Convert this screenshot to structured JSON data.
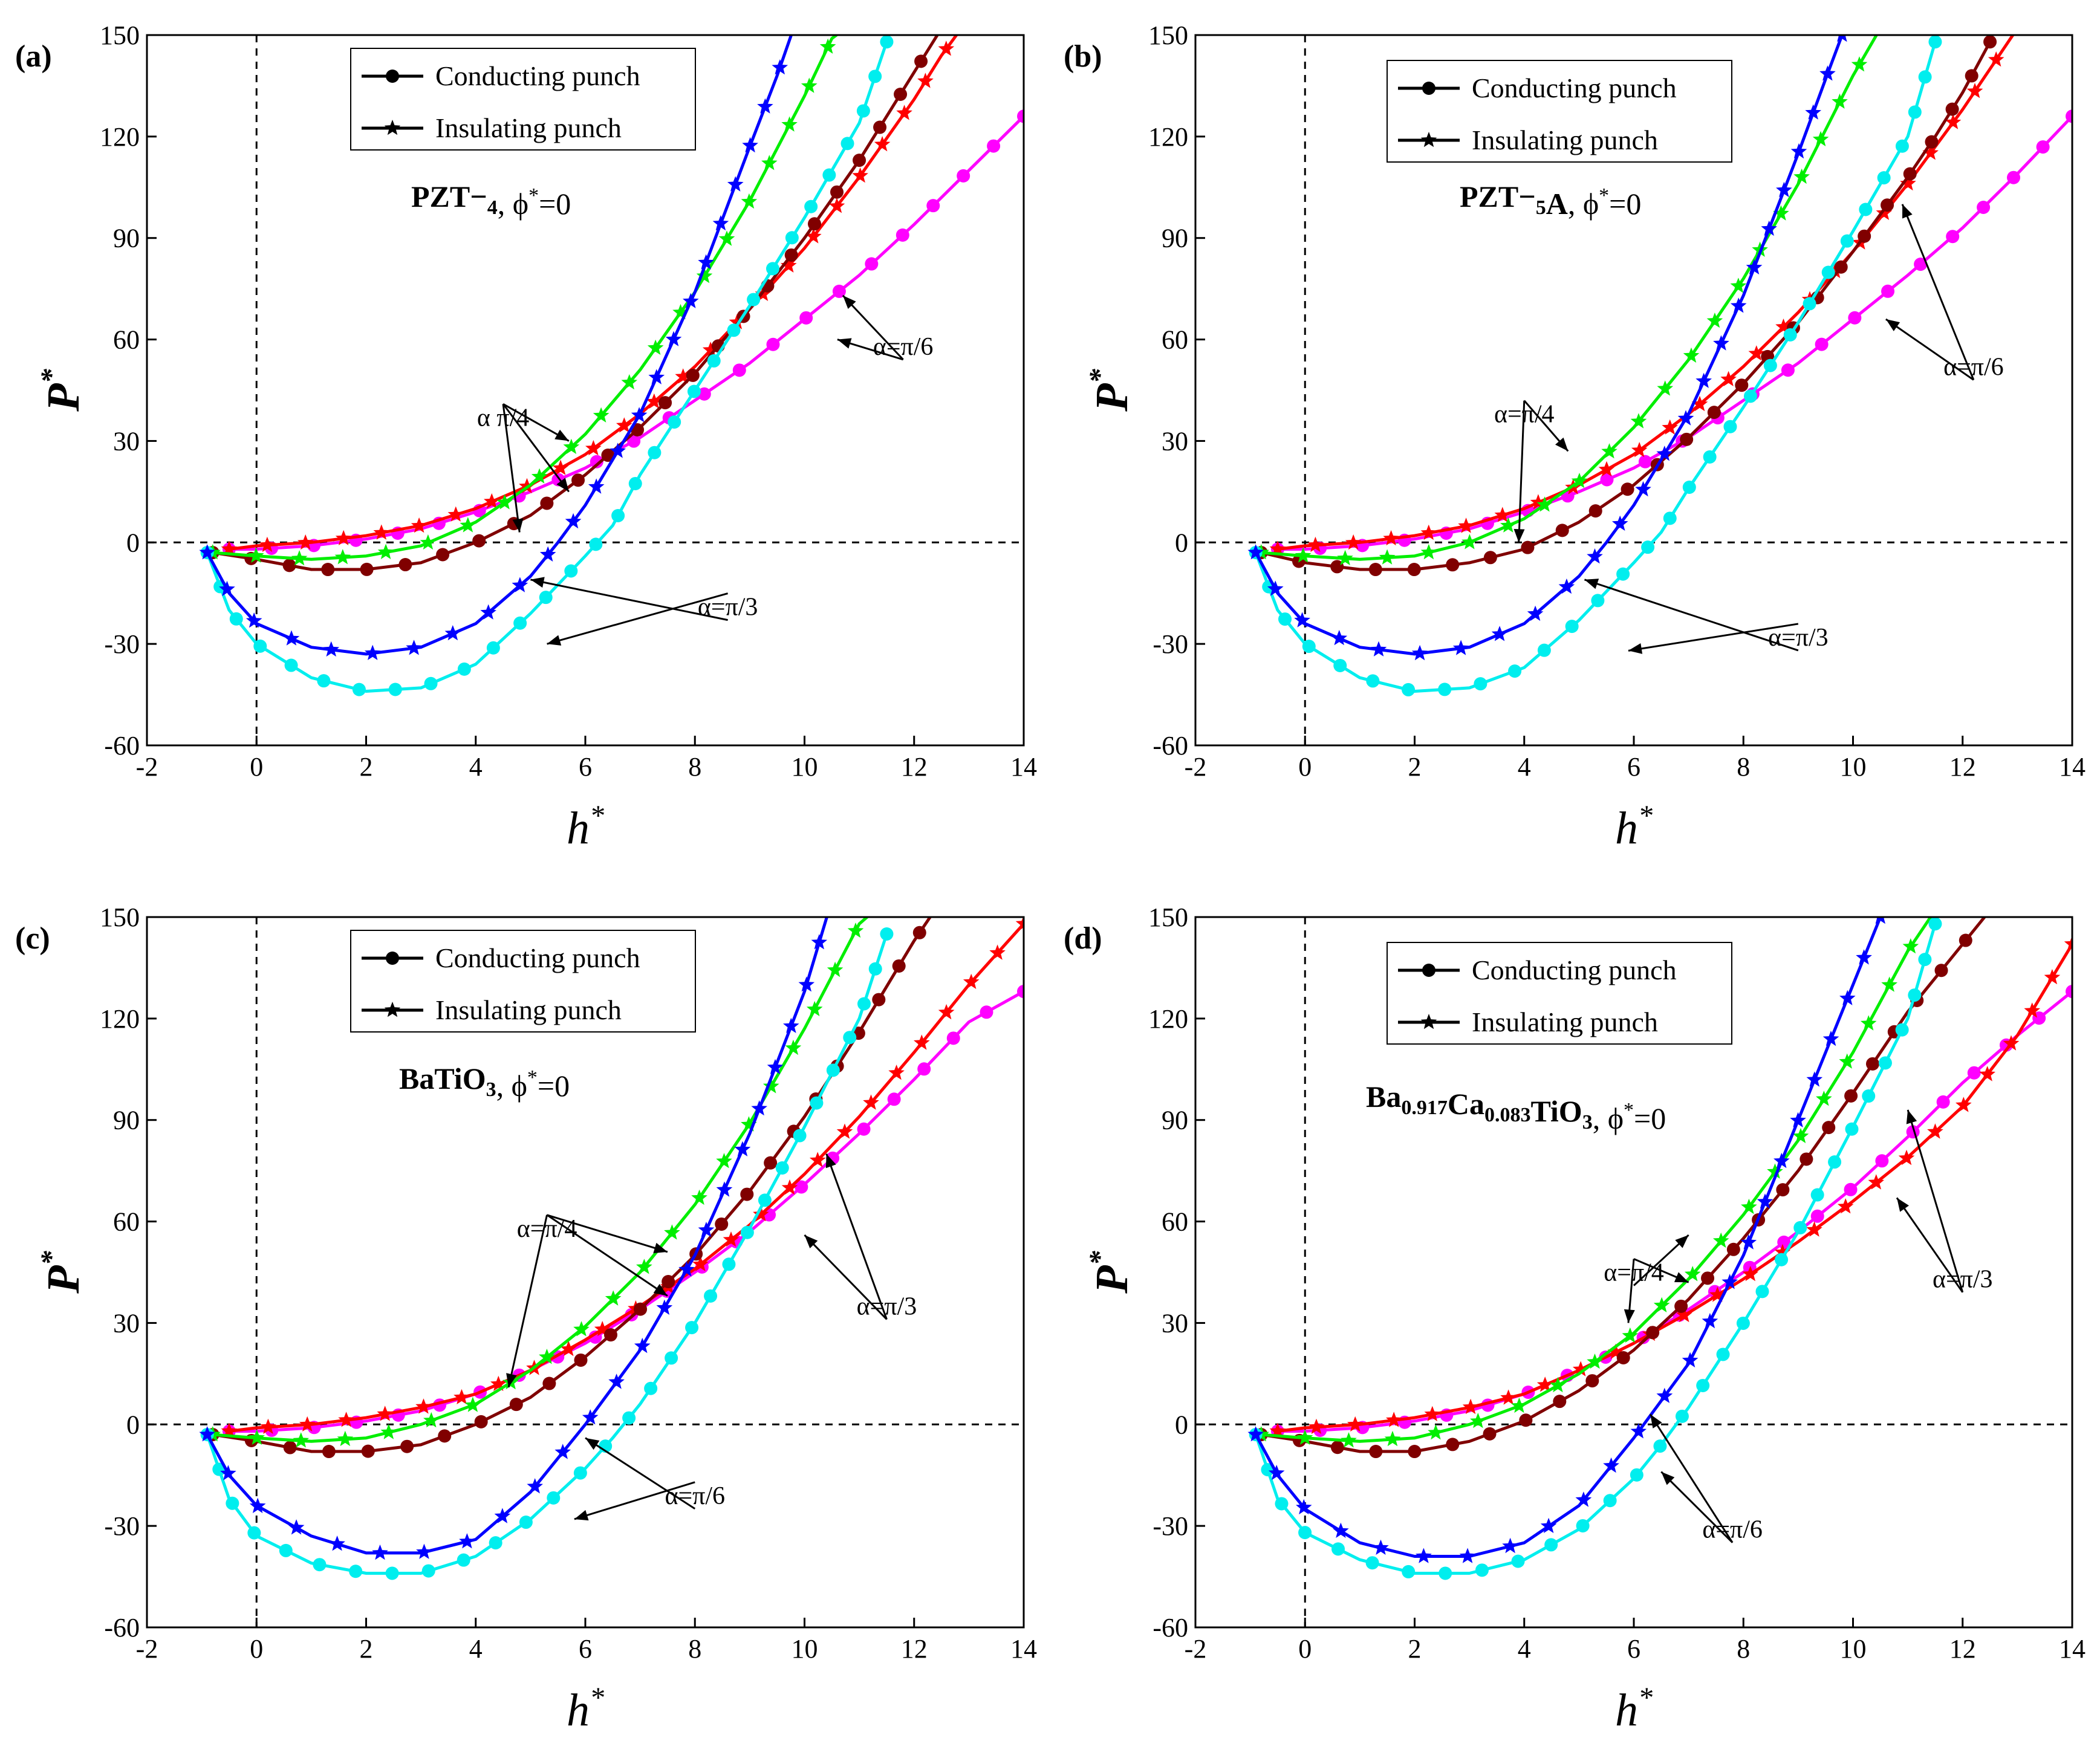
{
  "colors": {
    "pi6_cond": "#ff00ff",
    "pi6_ins": "#ff0000",
    "pi4_cond": "#800000",
    "pi4_ins": "#00ee00",
    "pi3_cond": "#00eeee",
    "pi3_ins": "#0000ff"
  },
  "chart_data": [
    {
      "type": "line",
      "panel_label": "(a)",
      "material_text": "PZT−4",
      "phi_text": "ϕ*=0",
      "xlabel": "h*",
      "ylabel": "P*",
      "xlim": [
        -2,
        14
      ],
      "ylim": [
        -60,
        150
      ],
      "xticks": [
        "-2",
        "0",
        "2",
        "4",
        "6",
        "8",
        "10",
        "12",
        "14"
      ],
      "yticks": [
        "-60",
        "-30",
        "0",
        "30",
        "60",
        "90",
        "120",
        "150"
      ],
      "legend": [
        "Conducting punch",
        "Insulating punch"
      ],
      "annotations": [
        "α  π/4",
        "α=π/3",
        "α=π/6"
      ],
      "series": [
        {
          "name": "Conducting punch, α=π/6",
          "x": [
            -0.5,
            0,
            1,
            2,
            3,
            4,
            5,
            6,
            7,
            8,
            9,
            10,
            11,
            12,
            13,
            14
          ],
          "y": [
            -2,
            -2,
            -1,
            1,
            4,
            9,
            15,
            22,
            31,
            42,
            53,
            66,
            79,
            94,
            110,
            126
          ]
        },
        {
          "name": "Insulating punch, α=π/6",
          "x": [
            -0.5,
            0,
            1,
            2,
            3,
            4,
            5,
            6,
            7,
            8,
            9,
            10,
            11,
            12,
            12.5,
            13
          ],
          "y": [
            -2,
            -1,
            0,
            2,
            5,
            10,
            17,
            26,
            38,
            52,
            69,
            87,
            108,
            131,
            144,
            155
          ]
        },
        {
          "name": "Conducting punch, α=π/4",
          "x": [
            -0.8,
            0,
            1,
            2,
            3,
            4,
            5,
            6,
            7,
            8,
            9,
            10,
            11,
            11.5,
            12,
            12.5
          ],
          "y": [
            -3,
            -5,
            -8,
            -8,
            -6,
            0,
            8,
            20,
            34,
            50,
            69,
            90,
            113,
            126,
            139,
            152
          ]
        },
        {
          "name": "Insulating punch, α=π/4",
          "x": [
            -0.8,
            0,
            1,
            2,
            3,
            4,
            5,
            6,
            7,
            8,
            9,
            10,
            10.5,
            11
          ],
          "y": [
            -3,
            -4,
            -5,
            -4,
            -1,
            6,
            17,
            32,
            51,
            74,
            101,
            132,
            149,
            155
          ]
        },
        {
          "name": "Conducting punch, α=π/3",
          "x": [
            -0.9,
            -0.5,
            0,
            1,
            2,
            3,
            4,
            5,
            6,
            6.5,
            7,
            8,
            9,
            10,
            11,
            11.5
          ],
          "y": [
            -3,
            -20,
            -30,
            -40,
            -44,
            -43,
            -36,
            -21,
            -4,
            5,
            20,
            45,
            70,
            96,
            124,
            148
          ]
        },
        {
          "name": "Insulating punch, α=π/3",
          "x": [
            -0.9,
            -0.5,
            0,
            1,
            2,
            3,
            4,
            5,
            5.5,
            6,
            7,
            8,
            9,
            9.5,
            9.8
          ],
          "y": [
            -3,
            -15,
            -24,
            -31,
            -33,
            -31,
            -24,
            -10,
            0,
            11,
            38,
            74,
            117,
            138,
            152
          ]
        }
      ]
    },
    {
      "type": "line",
      "panel_label": "(b)",
      "material_text": "PZT−5A",
      "phi_text": "ϕ*=0",
      "xlabel": "h*",
      "ylabel": "P*",
      "xlim": [
        -2,
        14
      ],
      "ylim": [
        -60,
        150
      ],
      "xticks": [
        "-2",
        "0",
        "2",
        "4",
        "6",
        "8",
        "10",
        "12",
        "14"
      ],
      "yticks": [
        "-60",
        "-30",
        "0",
        "30",
        "60",
        "90",
        "120",
        "150"
      ],
      "legend": [
        "Conducting punch",
        "Insulating punch"
      ],
      "annotations": [
        "α=π/4",
        "α=π/3",
        "α=π/6"
      ],
      "series": [
        {
          "name": "Conducting punch, α=π/6",
          "x": [
            -0.5,
            0,
            1,
            2,
            3,
            4,
            5,
            6,
            7,
            8,
            9,
            10,
            11,
            12,
            13,
            14
          ],
          "y": [
            -2,
            -2,
            -1,
            1,
            4,
            9,
            15,
            22,
            31,
            42,
            53,
            66,
            79,
            93,
            109,
            126
          ]
        },
        {
          "name": "Insulating punch, α=π/6",
          "x": [
            -0.5,
            0,
            1,
            2,
            3,
            4,
            5,
            6,
            7,
            8,
            9,
            10,
            11,
            12,
            12.5,
            13
          ],
          "y": [
            -2,
            -1,
            0,
            2,
            5,
            10,
            17,
            26,
            38,
            52,
            68,
            86,
            106,
            128,
            140,
            152
          ]
        },
        {
          "name": "Conducting punch, α=π/4",
          "x": [
            -0.8,
            0,
            1,
            2,
            3,
            4,
            5,
            6,
            7,
            8,
            9,
            10,
            11,
            11.5,
            12,
            12.5
          ],
          "y": [
            -3,
            -6,
            -8,
            -8,
            -6,
            -2,
            6,
            17,
            31,
            47,
            65,
            86,
            108,
            120,
            133,
            148
          ]
        },
        {
          "name": "Insulating punch, α=π/4",
          "x": [
            -0.8,
            0,
            1,
            2,
            3,
            4,
            5,
            6,
            7,
            8,
            9,
            10,
            10.5
          ],
          "y": [
            -3,
            -4,
            -5,
            -4,
            0,
            7,
            18,
            34,
            54,
            78,
            106,
            138,
            152
          ]
        },
        {
          "name": "Conducting punch, α=π/3",
          "x": [
            -0.9,
            -0.5,
            0,
            1,
            2,
            3,
            4,
            5,
            6,
            6.5,
            7,
            8,
            9,
            10,
            11,
            11.5
          ],
          "y": [
            -3,
            -20,
            -30,
            -40,
            -44,
            -43,
            -37,
            -23,
            -6,
            3,
            16,
            40,
            65,
            92,
            120,
            148
          ]
        },
        {
          "name": "Insulating punch, α=π/3",
          "x": [
            -0.9,
            -0.5,
            0,
            1,
            2,
            3,
            4,
            5,
            5.5,
            6,
            7,
            8,
            9,
            9.5,
            9.8
          ],
          "y": [
            -3,
            -15,
            -24,
            -31,
            -33,
            -31,
            -24,
            -10,
            0,
            11,
            38,
            73,
            115,
            137,
            150
          ]
        }
      ]
    },
    {
      "type": "line",
      "panel_label": "(c)",
      "material_text": "BaTiO3",
      "phi_text": "ϕ*=0",
      "xlabel": "h*",
      "ylabel": "P*",
      "xlim": [
        -2,
        14
      ],
      "ylim": [
        -60,
        150
      ],
      "xticks": [
        "-2",
        "0",
        "2",
        "4",
        "6",
        "8",
        "10",
        "12",
        "14"
      ],
      "yticks": [
        "-60",
        "-30",
        "0",
        "30",
        "60",
        "90",
        "120",
        "150"
      ],
      "legend": [
        "Conducting punch",
        "Insulating punch"
      ],
      "annotations": [
        "α=π/4",
        "α=π/6",
        "α=π/3"
      ],
      "series": [
        {
          "name": "Conducting punch, α=π/6",
          "x": [
            -0.5,
            0,
            1,
            2,
            3,
            4,
            5,
            6,
            7,
            8,
            9,
            10,
            11,
            12,
            13,
            14
          ],
          "y": [
            -2,
            -2,
            -1,
            1,
            4,
            9,
            16,
            24,
            34,
            45,
            57,
            71,
            86,
            102,
            119,
            128
          ]
        },
        {
          "name": "Insulating punch, α=π/6",
          "x": [
            -0.5,
            0,
            1,
            2,
            3,
            4,
            5,
            6,
            7,
            8,
            9,
            10,
            11,
            12,
            13,
            14
          ],
          "y": [
            -2,
            -1,
            0,
            2,
            5,
            9,
            16,
            25,
            35,
            46,
            59,
            74,
            91,
            110,
            130,
            148
          ]
        },
        {
          "name": "Conducting punch, α=π/4",
          "x": [
            -0.8,
            0,
            1,
            2,
            3,
            4,
            5,
            6,
            7,
            8,
            9,
            10,
            11,
            12,
            12.5
          ],
          "y": [
            -3,
            -5,
            -8,
            -8,
            -6,
            0,
            8,
            20,
            34,
            50,
            69,
            91,
            116,
            143,
            155
          ]
        },
        {
          "name": "Insulating punch, α=π/4",
          "x": [
            -0.8,
            0,
            1,
            2,
            3,
            4,
            5,
            6,
            7,
            8,
            9,
            10,
            11,
            11.5
          ],
          "y": [
            -3,
            -4,
            -5,
            -4,
            0,
            6,
            16,
            29,
            45,
            65,
            89,
            117,
            148,
            155
          ]
        },
        {
          "name": "Conducting punch, α=π/3",
          "x": [
            -0.9,
            -0.5,
            0,
            1,
            2,
            3,
            4,
            5,
            6,
            6.5,
            7,
            8,
            9,
            10,
            11,
            11.5
          ],
          "y": [
            -3,
            -22,
            -33,
            -41,
            -44,
            -44,
            -39,
            -28,
            -13,
            -4,
            6,
            30,
            58,
            88,
            120,
            145
          ]
        },
        {
          "name": "Insulating punch, α=π/3",
          "x": [
            -0.9,
            -0.5,
            0,
            1,
            2,
            3,
            4,
            5,
            5.5,
            6,
            7,
            8,
            9,
            10,
            10.5
          ],
          "y": [
            -3,
            -15,
            -24,
            -33,
            -38,
            -38,
            -34,
            -20,
            -10,
            0,
            22,
            50,
            86,
            128,
            155
          ]
        }
      ]
    },
    {
      "type": "line",
      "panel_label": "(d)",
      "material_text": "Ba0.917Ca0.083TiO3",
      "phi_text": "ϕ*=0",
      "xlabel": "h*",
      "ylabel": "P*",
      "xlim": [
        -2,
        14
      ],
      "ylim": [
        -60,
        150
      ],
      "xticks": [
        "-2",
        "0",
        "2",
        "4",
        "6",
        "8",
        "10",
        "12",
        "14"
      ],
      "yticks": [
        "-60",
        "-30",
        "0",
        "30",
        "60",
        "90",
        "120",
        "150"
      ],
      "legend": [
        "Conducting punch",
        "Insulating punch"
      ],
      "annotations": [
        "α=π/4",
        "α=π/6",
        "α=π/3"
      ],
      "series": [
        {
          "name": "Conducting punch, α=π/6",
          "x": [
            -0.5,
            0,
            1,
            2,
            3,
            4,
            5,
            6,
            7,
            8,
            9,
            10,
            11,
            12,
            13,
            14
          ],
          "y": [
            -2,
            -2,
            -1,
            1,
            4,
            9,
            16,
            24,
            34,
            45,
            57,
            70,
            85,
            101,
            115,
            128
          ]
        },
        {
          "name": "Insulating punch, α=π/6",
          "x": [
            -0.5,
            0,
            1,
            2,
            3,
            4,
            5,
            6,
            7,
            8,
            9,
            10,
            11,
            12,
            13,
            14
          ],
          "y": [
            -2,
            -1,
            0,
            2,
            5,
            9,
            16,
            24,
            33,
            43,
            54,
            66,
            79,
            94,
            115,
            142
          ]
        },
        {
          "name": "Conducting punch, α=π/4",
          "x": [
            -0.8,
            0,
            1,
            2,
            3,
            4,
            5,
            6,
            7,
            8,
            9,
            10,
            11,
            12,
            12.5
          ],
          "y": [
            -3,
            -5,
            -8,
            -8,
            -5,
            1,
            10,
            22,
            37,
            55,
            75,
            98,
            122,
            142,
            152
          ]
        },
        {
          "name": "Insulating punch, α=π/4",
          "x": [
            -0.8,
            0,
            1,
            2,
            3,
            4,
            5,
            6,
            7,
            8,
            9,
            10,
            11,
            11.5
          ],
          "y": [
            -3,
            -4,
            -5,
            -4,
            0,
            6,
            15,
            27,
            43,
            62,
            84,
            110,
            140,
            152
          ]
        },
        {
          "name": "Conducting punch, α=π/3",
          "x": [
            -0.9,
            -0.5,
            0,
            1,
            2,
            3,
            4,
            5,
            6,
            6.5,
            7,
            8,
            9,
            10,
            11,
            11.5
          ],
          "y": [
            -3,
            -22,
            -32,
            -40,
            -44,
            -44,
            -40,
            -31,
            -16,
            -6,
            5,
            30,
            57,
            88,
            120,
            148
          ]
        },
        {
          "name": "Insulating punch, α=π/3",
          "x": [
            -0.9,
            -0.5,
            0,
            1,
            2,
            3,
            4,
            5,
            5.5,
            6,
            7,
            8,
            9,
            10,
            10.5
          ],
          "y": [
            -3,
            -15,
            -25,
            -35,
            -39,
            -39,
            -35,
            -24,
            -14,
            -4,
            18,
            50,
            90,
            130,
            150
          ]
        }
      ]
    }
  ]
}
